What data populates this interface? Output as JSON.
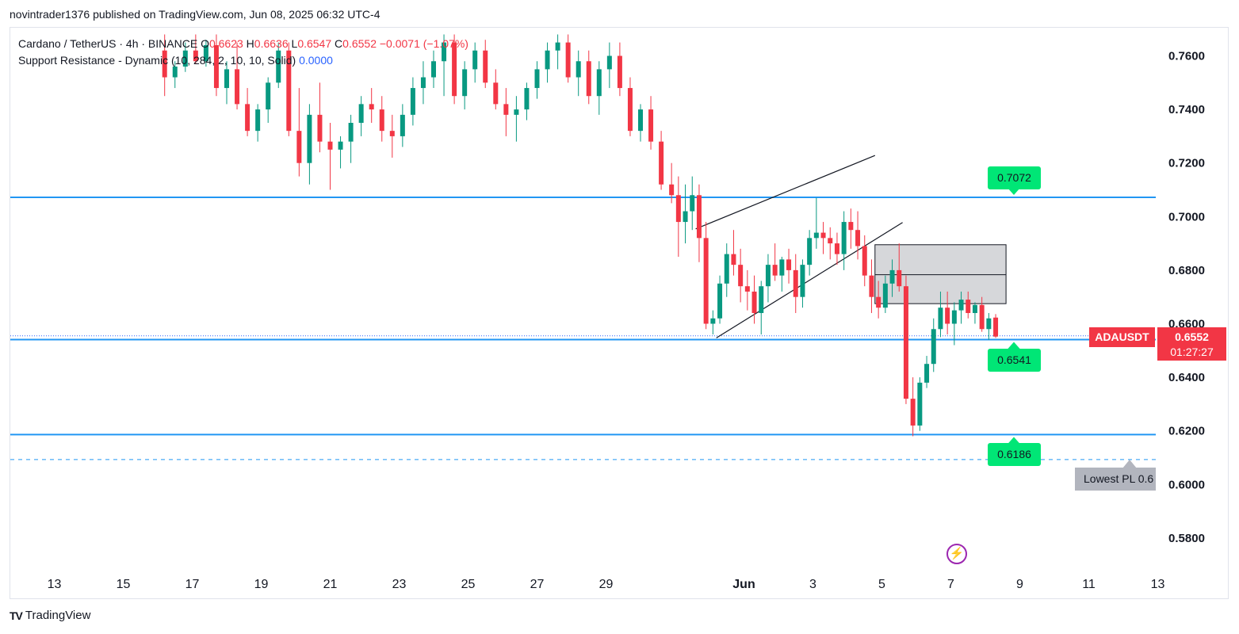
{
  "caption": "novintrader1376 published on TradingView.com, Jun 08, 2025 06:32 UTC-4",
  "legend": {
    "symbol": "Cardano / TetherUS · 4h · BINANCE",
    "o_label": "O",
    "o": "0.6623",
    "h_label": "H",
    "h": "0.6636",
    "l_label": "L",
    "l": "0.6547",
    "c_label": "C",
    "c": "0.6552",
    "change": "−0.0071 (−1.07%)",
    "indicator": "Support Resistance - Dynamic (10, 284, 2, 10, 10, Solid)",
    "indicator_value": "0.0000"
  },
  "symbol_tag": "ADAUSDT",
  "last_price": "0.6552",
  "countdown": "01:27:27",
  "levels": [
    {
      "label": "0.7072",
      "value": 0.7072
    },
    {
      "label": "0.6541",
      "value": 0.6541
    },
    {
      "label": "0.6186",
      "value": 0.6186
    }
  ],
  "lowest_label": "Lowest PL 0.6",
  "footer": "TradingView",
  "colors": {
    "up": "#089981",
    "down": "#f23645",
    "level": "#2196f3",
    "label": "#00e676"
  },
  "chart_data": {
    "type": "candlestick",
    "title": "Cardano / TetherUS · 4h · BINANCE",
    "ylim": [
      0.571,
      0.771
    ],
    "y_ticks": [
      "0.7600",
      "0.7400",
      "0.7200",
      "0.7000",
      "0.6800",
      "0.6600",
      "0.6400",
      "0.6200",
      "0.6000",
      "0.5800"
    ],
    "x_ticks": [
      "13",
      "15",
      "17",
      "19",
      "21",
      "23",
      "25",
      "27",
      "29",
      "Jun",
      "3",
      "5",
      "7",
      "9",
      "11",
      "13"
    ],
    "x_tick_days": [
      -19,
      -17,
      -15,
      -13,
      -11,
      -9,
      -7,
      -5,
      -3,
      1,
      3,
      5,
      7,
      9,
      11,
      13
    ],
    "horizontal_levels": [
      0.7072,
      0.6552,
      0.6541,
      0.6186
    ],
    "dashed_level": 0.6093,
    "rising_wedge": {
      "upper": [
        [
          -0.4,
          0.6954
        ],
        [
          4.8,
          0.7228
        ]
      ],
      "lower": [
        [
          0.2,
          0.6547
        ],
        [
          5.6,
          0.6978
        ]
      ]
    },
    "box": {
      "x": [
        4.8,
        8.6
      ],
      "y": [
        0.6675,
        0.6895
      ],
      "mid": 0.6783
    },
    "candles": [
      [
        -15.8,
        0.762,
        0.768,
        0.745,
        0.752
      ],
      [
        -15.5,
        0.752,
        0.758,
        0.748,
        0.756
      ],
      [
        -15.2,
        0.756,
        0.765,
        0.754,
        0.762
      ],
      [
        -14.9,
        0.762,
        0.768,
        0.757,
        0.758
      ],
      [
        -14.6,
        0.758,
        0.766,
        0.756,
        0.764
      ],
      [
        -14.3,
        0.764,
        0.768,
        0.745,
        0.748
      ],
      [
        -14.0,
        0.748,
        0.758,
        0.742,
        0.755
      ],
      [
        -13.7,
        0.755,
        0.765,
        0.74,
        0.742
      ],
      [
        -13.4,
        0.742,
        0.748,
        0.73,
        0.732
      ],
      [
        -13.1,
        0.732,
        0.742,
        0.728,
        0.74
      ],
      [
        -12.8,
        0.74,
        0.752,
        0.735,
        0.75
      ],
      [
        -12.5,
        0.75,
        0.765,
        0.748,
        0.762
      ],
      [
        -12.2,
        0.762,
        0.765,
        0.73,
        0.732
      ],
      [
        -11.9,
        0.732,
        0.748,
        0.715,
        0.72
      ],
      [
        -11.6,
        0.72,
        0.742,
        0.712,
        0.738
      ],
      [
        -11.3,
        0.738,
        0.75,
        0.724,
        0.728
      ],
      [
        -11.0,
        0.728,
        0.735,
        0.71,
        0.725
      ],
      [
        -10.7,
        0.725,
        0.73,
        0.718,
        0.728
      ],
      [
        -10.4,
        0.728,
        0.738,
        0.72,
        0.735
      ],
      [
        -10.1,
        0.735,
        0.745,
        0.73,
        0.742
      ],
      [
        -9.8,
        0.742,
        0.748,
        0.735,
        0.74
      ],
      [
        -9.5,
        0.74,
        0.745,
        0.728,
        0.732
      ],
      [
        -9.2,
        0.732,
        0.738,
        0.722,
        0.73
      ],
      [
        -8.9,
        0.73,
        0.742,
        0.726,
        0.738
      ],
      [
        -8.6,
        0.738,
        0.752,
        0.734,
        0.748
      ],
      [
        -8.3,
        0.748,
        0.758,
        0.742,
        0.752
      ],
      [
        -8.0,
        0.752,
        0.762,
        0.748,
        0.758
      ],
      [
        -7.7,
        0.758,
        0.768,
        0.745,
        0.765
      ],
      [
        -7.4,
        0.765,
        0.768,
        0.742,
        0.745
      ],
      [
        -7.1,
        0.745,
        0.758,
        0.74,
        0.755
      ],
      [
        -6.8,
        0.755,
        0.765,
        0.75,
        0.762
      ],
      [
        -6.5,
        0.762,
        0.766,
        0.748,
        0.75
      ],
      [
        -6.2,
        0.75,
        0.755,
        0.74,
        0.742
      ],
      [
        -5.9,
        0.742,
        0.748,
        0.73,
        0.738
      ],
      [
        -5.6,
        0.738,
        0.745,
        0.728,
        0.74
      ],
      [
        -5.3,
        0.74,
        0.75,
        0.736,
        0.748
      ],
      [
        -5.0,
        0.748,
        0.758,
        0.744,
        0.755
      ],
      [
        -4.7,
        0.755,
        0.765,
        0.75,
        0.762
      ],
      [
        -4.4,
        0.762,
        0.768,
        0.755,
        0.765
      ],
      [
        -4.1,
        0.765,
        0.768,
        0.75,
        0.752
      ],
      [
        -3.8,
        0.752,
        0.762,
        0.745,
        0.758
      ],
      [
        -3.5,
        0.758,
        0.762,
        0.742,
        0.745
      ],
      [
        -3.2,
        0.745,
        0.758,
        0.738,
        0.755
      ],
      [
        -2.9,
        0.755,
        0.765,
        0.748,
        0.76
      ],
      [
        -2.6,
        0.76,
        0.765,
        0.745,
        0.748
      ],
      [
        -2.3,
        0.748,
        0.752,
        0.73,
        0.732
      ],
      [
        -2.0,
        0.732,
        0.742,
        0.728,
        0.74
      ],
      [
        -1.7,
        0.74,
        0.745,
        0.725,
        0.728
      ],
      [
        -1.4,
        0.728,
        0.732,
        0.71,
        0.712
      ],
      [
        -1.1,
        0.712,
        0.72,
        0.705,
        0.708
      ],
      [
        -0.9,
        0.708,
        0.715,
        0.685,
        0.698
      ],
      [
        -0.7,
        0.698,
        0.712,
        0.69,
        0.702
      ],
      [
        -0.5,
        0.702,
        0.715,
        0.695,
        0.708
      ],
      [
        -0.3,
        0.708,
        0.712,
        0.683,
        0.692
      ],
      [
        -0.1,
        0.692,
        0.698,
        0.658,
        0.66
      ],
      [
        0.1,
        0.66,
        0.665,
        0.656,
        0.662
      ],
      [
        0.3,
        0.662,
        0.678,
        0.66,
        0.675
      ],
      [
        0.5,
        0.675,
        0.69,
        0.67,
        0.686
      ],
      [
        0.7,
        0.686,
        0.695,
        0.678,
        0.682
      ],
      [
        0.9,
        0.682,
        0.688,
        0.668,
        0.674
      ],
      [
        1.1,
        0.674,
        0.68,
        0.665,
        0.672
      ],
      [
        1.3,
        0.672,
        0.678,
        0.66,
        0.664
      ],
      [
        1.5,
        0.664,
        0.676,
        0.656,
        0.674
      ],
      [
        1.7,
        0.674,
        0.686,
        0.668,
        0.682
      ],
      [
        1.9,
        0.682,
        0.69,
        0.676,
        0.678
      ],
      [
        2.1,
        0.678,
        0.685,
        0.672,
        0.684
      ],
      [
        2.3,
        0.684,
        0.688,
        0.675,
        0.68
      ],
      [
        2.5,
        0.68,
        0.686,
        0.664,
        0.67
      ],
      [
        2.7,
        0.67,
        0.684,
        0.666,
        0.682
      ],
      [
        2.9,
        0.682,
        0.695,
        0.678,
        0.692
      ],
      [
        3.1,
        0.692,
        0.707,
        0.688,
        0.694
      ],
      [
        3.3,
        0.694,
        0.698,
        0.686,
        0.692
      ],
      [
        3.5,
        0.692,
        0.696,
        0.684,
        0.69
      ],
      [
        3.7,
        0.69,
        0.694,
        0.682,
        0.686
      ],
      [
        3.9,
        0.686,
        0.702,
        0.68,
        0.698
      ],
      [
        4.1,
        0.698,
        0.703,
        0.688,
        0.695
      ],
      [
        4.3,
        0.695,
        0.702,
        0.684,
        0.689
      ],
      [
        4.5,
        0.689,
        0.693,
        0.674,
        0.678
      ],
      [
        4.7,
        0.678,
        0.684,
        0.664,
        0.67
      ],
      [
        4.9,
        0.67,
        0.676,
        0.662,
        0.666
      ],
      [
        5.1,
        0.666,
        0.678,
        0.664,
        0.675
      ],
      [
        5.3,
        0.675,
        0.684,
        0.67,
        0.68
      ],
      [
        5.5,
        0.68,
        0.69,
        0.672,
        0.674
      ],
      [
        5.7,
        0.674,
        0.678,
        0.63,
        0.632
      ],
      [
        5.9,
        0.632,
        0.64,
        0.618,
        0.622
      ],
      [
        6.1,
        0.622,
        0.64,
        0.62,
        0.638
      ],
      [
        6.3,
        0.638,
        0.648,
        0.636,
        0.645
      ],
      [
        6.5,
        0.645,
        0.662,
        0.642,
        0.658
      ],
      [
        6.7,
        0.658,
        0.672,
        0.655,
        0.666
      ],
      [
        6.9,
        0.666,
        0.672,
        0.656,
        0.66
      ],
      [
        7.1,
        0.66,
        0.668,
        0.652,
        0.665
      ],
      [
        7.3,
        0.665,
        0.672,
        0.66,
        0.669
      ],
      [
        7.5,
        0.669,
        0.672,
        0.662,
        0.664
      ],
      [
        7.7,
        0.664,
        0.668,
        0.66,
        0.667
      ],
      [
        7.9,
        0.667,
        0.67,
        0.657,
        0.658
      ],
      [
        8.1,
        0.658,
        0.664,
        0.654,
        0.662
      ],
      [
        8.3,
        0.6623,
        0.6636,
        0.6547,
        0.6552
      ]
    ]
  }
}
